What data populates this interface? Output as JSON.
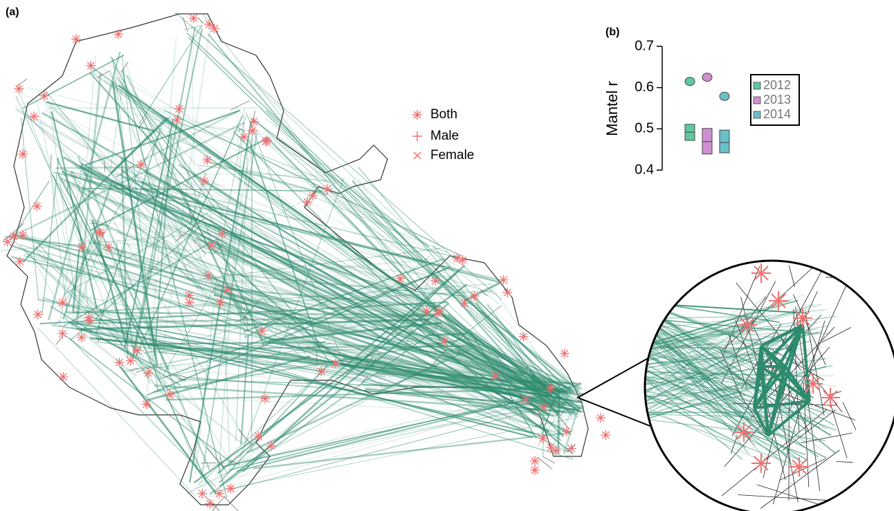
{
  "map": {
    "label": "(a)",
    "legend": [
      "Both",
      "Male",
      "Female"
    ]
  },
  "chart_data": {
    "type": "box",
    "label": "(b)",
    "ylabel": "Mantel r",
    "ylim": [
      0.4,
      0.7
    ],
    "yticks": [
      0.4,
      0.5,
      0.6,
      0.7
    ],
    "series": [
      {
        "name": "2012",
        "color": "#5ec9a0",
        "point": 0.615,
        "low": 0.472,
        "median": 0.492,
        "high": 0.511
      },
      {
        "name": "2013",
        "color": "#d08fd1",
        "point": 0.625,
        "low": 0.439,
        "median": 0.469,
        "high": 0.501
      },
      {
        "name": "2014",
        "color": "#6bc0c8",
        "point": 0.579,
        "low": 0.442,
        "median": 0.467,
        "high": 0.497
      }
    ]
  }
}
